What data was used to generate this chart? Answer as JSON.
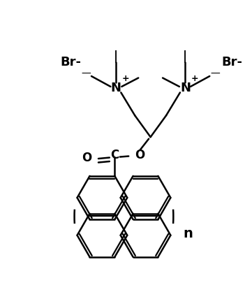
{
  "bg_color": "#ffffff",
  "line_color": "#000000",
  "line_width": 1.8,
  "figsize": [
    3.51,
    4.38
  ],
  "dpi": 100,
  "xlim": [
    0,
    7
  ],
  "ylim": [
    0,
    8.75
  ]
}
